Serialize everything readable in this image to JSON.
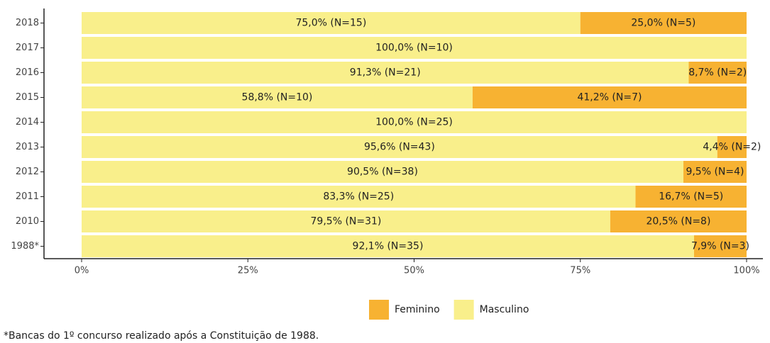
{
  "chart_data": {
    "type": "stacked_bar_horizontal",
    "categories": [
      "2018",
      "2017",
      "2016",
      "2015",
      "2014",
      "2013",
      "2012",
      "2011",
      "2010",
      "1988*"
    ],
    "series": [
      {
        "name": "Feminino",
        "color": "#f7b232",
        "values": [
          25.0,
          null,
          8.7,
          41.2,
          null,
          4.4,
          9.5,
          16.7,
          20.5,
          7.9
        ],
        "value_labels": [
          "25,0% (N=5)",
          null,
          "8,7% (N=2)",
          "41,2% (N=7)",
          null,
          "4,4% (N=2)",
          "9,5% (N=4)",
          "16,7% (N=5)",
          "20,5% (N=8)",
          "7,9% (N=3)"
        ]
      },
      {
        "name": "Masculino",
        "color": "#f9ef8b",
        "values": [
          75.0,
          100.0,
          91.3,
          58.8,
          100.0,
          95.6,
          90.5,
          83.3,
          79.5,
          92.1
        ],
        "value_labels": [
          "75,0% (N=15)",
          "100,0% (N=10)",
          "91,3% (N=21)",
          "58,8% (N=10)",
          "100,0% (N=25)",
          "95,6% (N=43)",
          "90,5% (N=38)",
          "83,3% (N=25)",
          "79,5% (N=31)",
          "92,1% (N=35)"
        ]
      }
    ],
    "xlim": [
      0,
      100
    ],
    "xticks": [
      {
        "value": 0,
        "label": "0%"
      },
      {
        "value": 25,
        "label": "25%"
      },
      {
        "value": 50,
        "label": "50%"
      },
      {
        "value": 75,
        "label": "75%"
      },
      {
        "value": 100,
        "label": "100%"
      }
    ],
    "legend": "bottom",
    "footnote": "*Bancas do 1º concurso realizado após a Constituição de 1988."
  }
}
